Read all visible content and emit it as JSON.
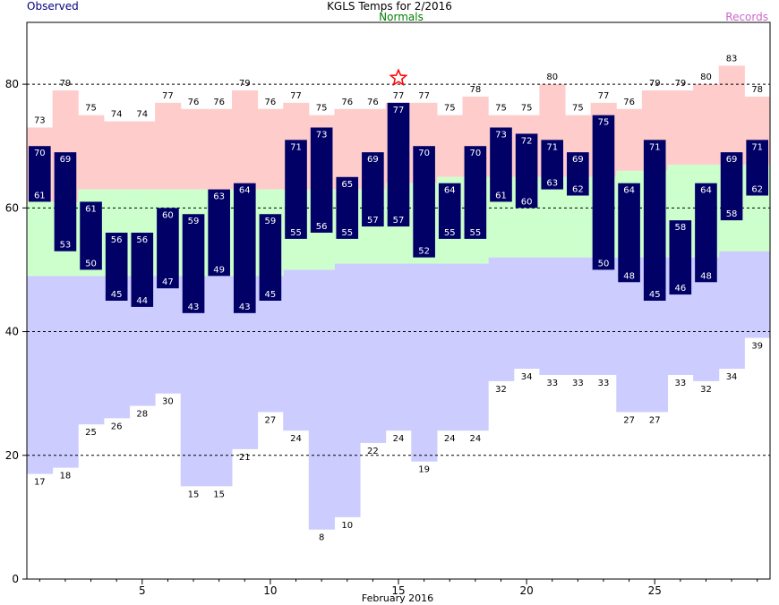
{
  "chart_data": {
    "type": "bar",
    "title": "KGLS Temps for 2/2016",
    "legend": {
      "observed_label": "Observed",
      "normals_label": "Normals",
      "records_label": "Records"
    },
    "xlabel": "February 2016",
    "ylabel": "",
    "x": [
      1,
      2,
      3,
      4,
      5,
      6,
      7,
      8,
      9,
      10,
      11,
      12,
      13,
      14,
      15,
      16,
      17,
      18,
      19,
      20,
      21,
      22,
      23,
      24,
      25,
      26,
      27,
      28,
      29
    ],
    "x_ticks": [
      5,
      10,
      15,
      20,
      25
    ],
    "y_ticks": [
      0,
      20,
      40,
      60,
      80
    ],
    "ylim": [
      0,
      90
    ],
    "grid_dashed_at": [
      20,
      40,
      60,
      80
    ],
    "series": [
      {
        "name": "Observed",
        "role": "observed_high",
        "values": [
          70,
          69,
          61,
          56,
          56,
          60,
          59,
          63,
          64,
          59,
          71,
          73,
          65,
          69,
          77,
          70,
          64,
          70,
          73,
          72,
          71,
          69,
          75,
          64,
          71,
          58,
          64,
          69,
          71
        ]
      },
      {
        "name": "Observed",
        "role": "observed_low",
        "values": [
          61,
          53,
          50,
          45,
          44,
          47,
          43,
          49,
          43,
          45,
          55,
          56,
          55,
          57,
          57,
          52,
          55,
          55,
          61,
          60,
          63,
          62,
          50,
          48,
          45,
          46,
          48,
          58,
          62
        ]
      },
      {
        "name": "Normals",
        "role": "normal_high",
        "values": [
          61,
          61,
          63,
          63,
          63,
          63,
          63,
          63,
          63,
          63,
          63,
          63,
          63,
          63,
          64,
          64,
          65,
          65,
          65,
          65,
          65,
          65,
          65,
          66,
          66,
          67,
          67,
          67,
          67
        ]
      },
      {
        "name": "Normals",
        "role": "normal_low",
        "values": [
          49,
          49,
          49,
          49,
          49,
          49,
          49,
          49,
          49,
          49,
          50,
          50,
          51,
          51,
          51,
          51,
          51,
          51,
          52,
          52,
          52,
          52,
          52,
          52,
          52,
          52,
          52,
          53,
          53
        ]
      },
      {
        "name": "Records",
        "role": "record_high",
        "values": [
          73,
          79,
          75,
          74,
          74,
          77,
          76,
          76,
          79,
          76,
          77,
          75,
          76,
          76,
          77,
          77,
          75,
          78,
          75,
          75,
          80,
          75,
          77,
          76,
          79,
          79,
          80,
          83,
          78
        ]
      },
      {
        "name": "Records",
        "role": "record_low",
        "values": [
          17,
          18,
          25,
          26,
          28,
          30,
          15,
          15,
          21,
          27,
          24,
          8,
          10,
          22,
          24,
          19,
          24,
          24,
          32,
          34,
          33,
          33,
          33,
          27,
          27,
          33,
          32,
          34,
          39
        ]
      }
    ],
    "record_marker": {
      "day": 15,
      "value": 81,
      "symbol": "star"
    },
    "colors": {
      "observed": "#000066",
      "observed_text": "#ffffff",
      "normals": "#ccffcc",
      "record_high_fill": "#ffcccc",
      "record_low_fill": "#ccccff",
      "record_marker": "#ff0000",
      "observed_header": "#000080",
      "normals_header": "#008000",
      "records_header": "#cc66cc",
      "grid": "#000000"
    }
  }
}
